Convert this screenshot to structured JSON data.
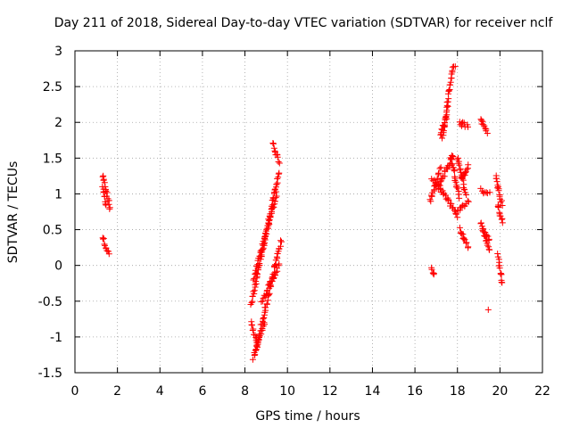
{
  "chart_data": {
    "type": "scatter",
    "title": "Day 211 of 2018, Sidereal Day-to-day VTEC variation (SDTVAR) for receiver nclf",
    "xlabel": "GPS time / hours",
    "ylabel": "SDTVAR / TECUs",
    "xlim": [
      0,
      22
    ],
    "ylim": [
      -1.5,
      3
    ],
    "xticks": [
      0,
      2,
      4,
      6,
      8,
      10,
      12,
      14,
      16,
      18,
      20,
      22
    ],
    "xtick_labels": [
      "0",
      "2",
      "4",
      "6",
      "8",
      "10",
      "12",
      "14",
      "16",
      "18",
      "20",
      "22"
    ],
    "yticks": [
      -1.5,
      -1,
      -0.5,
      0,
      0.5,
      1,
      1.5,
      2,
      2.5,
      3
    ],
    "ytick_labels": [
      "-1.5",
      "-1",
      "-0.5",
      "0",
      "0.5",
      "1",
      "1.5",
      "2",
      "2.5",
      "3"
    ],
    "grid": true,
    "marker": "+",
    "marker_color": "#ff0000",
    "segments": [
      {
        "x0": 1.3,
        "x1": 1.65,
        "y0": 1.25,
        "y1": 0.8
      },
      {
        "x0": 1.3,
        "x1": 1.45,
        "y0": 1.1,
        "y1": 0.85
      },
      {
        "x0": 1.3,
        "x1": 1.6,
        "y0": 0.4,
        "y1": 0.15
      },
      {
        "x0": 8.3,
        "x1": 9.6,
        "y0": -0.55,
        "y1": 1.3
      },
      {
        "x0": 8.4,
        "x1": 9.5,
        "y0": -0.2,
        "y1": 1.0
      },
      {
        "x0": 8.5,
        "x1": 9.7,
        "y0": -1.2,
        "y1": 0.35
      },
      {
        "x0": 8.4,
        "x1": 8.9,
        "y0": -1.3,
        "y1": -0.8
      },
      {
        "x0": 8.3,
        "x1": 8.6,
        "y0": -0.8,
        "y1": -1.1
      },
      {
        "x0": 9.3,
        "x1": 9.6,
        "y0": 1.7,
        "y1": 1.45
      },
      {
        "x0": 8.8,
        "x1": 9.6,
        "y0": -0.5,
        "y1": 0.0
      },
      {
        "x0": 16.8,
        "x1": 16.9,
        "y0": -0.05,
        "y1": -0.15
      },
      {
        "x0": 16.7,
        "x1": 17.2,
        "y0": 0.9,
        "y1": 1.35
      },
      {
        "x0": 16.8,
        "x1": 17.6,
        "y0": 1.2,
        "y1": 0.9
      },
      {
        "x0": 17.1,
        "x1": 17.8,
        "y0": 1.1,
        "y1": 1.55
      },
      {
        "x0": 17.3,
        "x1": 17.8,
        "y0": 1.8,
        "y1": 2.8
      },
      {
        "x0": 17.2,
        "x1": 17.5,
        "y0": 1.8,
        "y1": 2.1
      },
      {
        "x0": 17.7,
        "x1": 18.1,
        "y0": 1.5,
        "y1": 0.95
      },
      {
        "x0": 17.6,
        "x1": 18.0,
        "y0": 0.9,
        "y1": 0.7
      },
      {
        "x0": 18.0,
        "x1": 18.5,
        "y0": 0.75,
        "y1": 0.9
      },
      {
        "x0": 18.0,
        "x1": 18.4,
        "y0": 1.5,
        "y1": 1.0
      },
      {
        "x0": 18.1,
        "x1": 18.5,
        "y0": 2.0,
        "y1": 1.95
      },
      {
        "x0": 18.2,
        "x1": 18.5,
        "y0": 1.2,
        "y1": 1.4
      },
      {
        "x0": 18.1,
        "x1": 18.5,
        "y0": 0.5,
        "y1": 0.25
      },
      {
        "x0": 19.1,
        "x1": 19.4,
        "y0": 2.05,
        "y1": 1.85
      },
      {
        "x0": 19.1,
        "x1": 19.5,
        "y0": 1.05,
        "y1": 1.0
      },
      {
        "x0": 19.1,
        "x1": 19.5,
        "y0": 0.6,
        "y1": 0.2
      },
      {
        "x0": 19.2,
        "x1": 19.5,
        "y0": 0.5,
        "y1": 0.35
      },
      {
        "x0": 19.8,
        "x1": 20.1,
        "y0": 1.25,
        "y1": 0.85
      },
      {
        "x0": 19.9,
        "x1": 20.1,
        "y0": 0.85,
        "y1": 0.6
      },
      {
        "x0": 19.9,
        "x1": 20.1,
        "y0": 0.15,
        "y1": -0.25
      }
    ],
    "isolated_points": [
      {
        "x": 19.45,
        "y": -0.62
      },
      {
        "x": 18.2,
        "y": 1.95
      },
      {
        "x": 17.9,
        "y": 2.78
      }
    ]
  }
}
